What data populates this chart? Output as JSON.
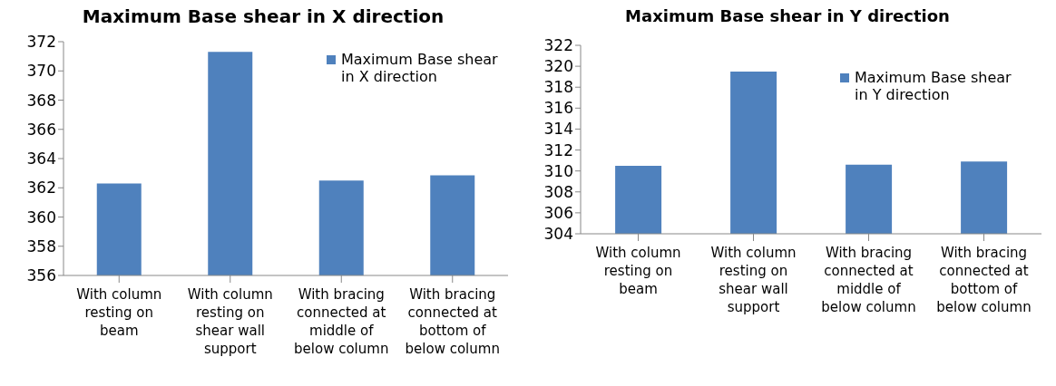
{
  "chart_data": [
    {
      "type": "bar",
      "title": "Maximum Base shear in X direction",
      "categories": [
        "With column resting on beam",
        "With column resting on shear wall support",
        "With bracing connected at middle of below column",
        "With bracing connected at bottom of below column"
      ],
      "series": [
        {
          "name": "Maximum Base shear in X direction",
          "color": "#4f81bd",
          "values": [
            362.3,
            371.3,
            362.5,
            362.85
          ]
        }
      ],
      "ylim": [
        356,
        372
      ],
      "yticks": [
        356,
        358,
        360,
        362,
        364,
        366,
        368,
        370,
        372
      ],
      "grid": false,
      "legend": "top right"
    },
    {
      "type": "bar",
      "title": "Maximum Base shear in Y direction",
      "categories": [
        "With column resting on beam",
        "With column resting on shear wall support",
        "With bracing connected at middle of below column",
        "With bracing connected at bottom of below column"
      ],
      "series": [
        {
          "name": "Maximum Base shear in Y direction",
          "color": "#4f81bd",
          "values": [
            310.5,
            319.5,
            310.6,
            310.9
          ]
        }
      ],
      "ylim": [
        304,
        322
      ],
      "yticks": [
        304,
        306,
        308,
        310,
        312,
        314,
        316,
        318,
        320,
        322
      ],
      "grid": false,
      "legend": "top right"
    }
  ]
}
